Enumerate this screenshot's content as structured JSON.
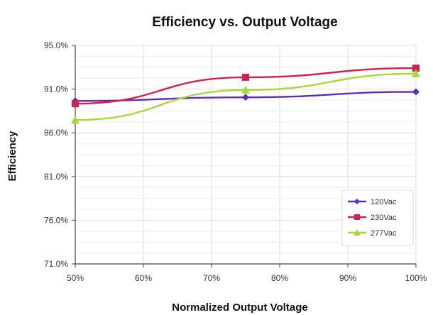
{
  "chart_data": {
    "type": "line",
    "title": "Efficiency vs. Output Voltage",
    "xlabel": "Normalized Output Voltage",
    "ylabel": "Efficiency",
    "x_ticks": [
      "50%",
      "60%",
      "70%",
      "80%",
      "90%",
      "100%"
    ],
    "y_ticks": [
      "71.0%",
      "76.0%",
      "81.0%",
      "86.0%",
      "91.0%",
      "95.0%"
    ],
    "xlim": [
      50,
      100
    ],
    "ylim": [
      71,
      95
    ],
    "grid": true,
    "legend_position": "bottom-right",
    "x": [
      50,
      75,
      100
    ],
    "series": [
      {
        "name": "120Vac",
        "color": "#5b2fb5",
        "marker": "diamond",
        "values": [
          88.9,
          89.3,
          89.9
        ]
      },
      {
        "name": "230Vac",
        "color": "#d4204a",
        "marker": "square",
        "values": [
          88.6,
          91.5,
          92.5
        ]
      },
      {
        "name": "277Vac",
        "color": "#a6d83a",
        "marker": "triangle",
        "values": [
          86.8,
          90.1,
          91.9
        ]
      }
    ]
  }
}
